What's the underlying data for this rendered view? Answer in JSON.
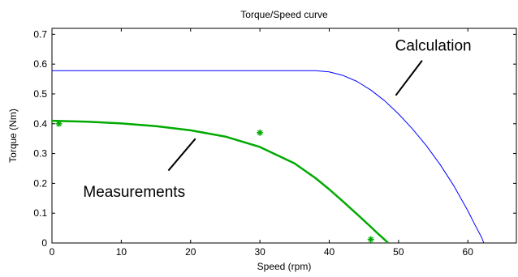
{
  "chart_data": {
    "type": "line",
    "title": "Torque/Speed curve",
    "xlabel": "Speed (rpm)",
    "ylabel": "Torque (Nm)",
    "xlim": [
      0,
      67
    ],
    "ylim": [
      0,
      0.72
    ],
    "xticks": [
      0,
      10,
      20,
      30,
      40,
      50,
      60
    ],
    "xtick_labels": [
      "0",
      "10",
      "20",
      "30",
      "40",
      "50",
      "60"
    ],
    "yticks": [
      0,
      0.1,
      0.2,
      0.3,
      0.4,
      0.5,
      0.6,
      0.7
    ],
    "ytick_labels": [
      "0",
      "0.1",
      "0.2",
      "0.3",
      "0.4",
      "0.5",
      "0.6",
      "0.7"
    ],
    "grid": false,
    "series": [
      {
        "color": "#0000ff",
        "style": "line",
        "x": [
          0,
          10,
          20,
          30,
          38,
          40,
          42,
          44,
          46,
          48,
          50,
          52,
          54,
          56,
          58,
          60,
          61,
          62,
          62.3
        ],
        "y": [
          0.578,
          0.578,
          0.578,
          0.578,
          0.578,
          0.574,
          0.562,
          0.542,
          0.513,
          0.477,
          0.433,
          0.383,
          0.327,
          0.263,
          0.191,
          0.108,
          0.062,
          0.018,
          0
        ]
      },
      {
        "color": "#00aa00",
        "style": "line",
        "x": [
          0,
          5,
          10,
          15,
          20,
          25,
          30,
          35,
          38,
          40,
          42,
          44,
          46,
          47,
          48,
          48.5
        ],
        "y": [
          0.41,
          0.407,
          0.401,
          0.392,
          0.378,
          0.357,
          0.322,
          0.267,
          0.218,
          0.18,
          0.139,
          0.097,
          0.054,
          0.032,
          0.011,
          0
        ]
      },
      {
        "color": "#00aa00",
        "style": "marker",
        "marker": "asterisk",
        "x": [
          1,
          30,
          46
        ],
        "y": [
          0.4,
          0.37,
          0.012
        ]
      }
    ],
    "annotations": [
      {
        "text": "Calculation",
        "x": 49.5,
        "y": 0.645,
        "line": {
          "x1": 53.4,
          "y1": 0.612,
          "x2": 49.6,
          "y2": 0.495
        }
      },
      {
        "text": "Measurements",
        "x": 4.5,
        "y": 0.155,
        "line": {
          "x1": 20.7,
          "y1": 0.35,
          "x2": 16.8,
          "y2": 0.243
        }
      }
    ]
  }
}
